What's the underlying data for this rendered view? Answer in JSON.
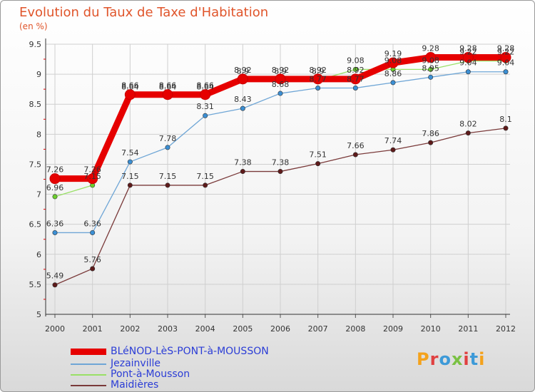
{
  "title": "Evolution du Taux de Taxe d'Habitation",
  "subtitle": "(en %)",
  "logo": "Proxiti",
  "colors": {
    "title": "#e0552b",
    "legend_text": "#2b3dd6",
    "grid": "#cfcfcf",
    "axis_red": "#e00000"
  },
  "chart_data": {
    "type": "line",
    "title": "Evolution du Taux de Taxe d'Habitation",
    "ylabel": "(en %)",
    "xlabel": "",
    "x": [
      2000,
      2001,
      2002,
      2003,
      2004,
      2005,
      2006,
      2007,
      2008,
      2009,
      2010,
      2011,
      2012
    ],
    "ylim": [
      5,
      9.5
    ],
    "yticks": [
      5,
      5.5,
      6,
      6.5,
      7,
      7.5,
      8,
      8.5,
      9,
      9.5
    ],
    "grid": true,
    "legend_position": "bottom-left",
    "series": [
      {
        "name": "BLéNOD-LèS-PONT-à-MOUSSON",
        "color": "#e60000",
        "marker": "#e60000",
        "width": 9,
        "values": [
          7.26,
          7.26,
          8.66,
          8.66,
          8.66,
          8.92,
          8.92,
          8.92,
          8.92,
          9.19,
          9.28,
          9.28,
          9.28
        ],
        "labels": [
          "7.26",
          "7.26",
          "8.66",
          "8.66",
          "8.66",
          "8.92",
          "8.92",
          "8.92",
          "8.92",
          "9.19",
          "9.28",
          "9.28",
          "9.28"
        ],
        "label_dy": -9
      },
      {
        "name": "Jezainville",
        "color": "#6fa6d6",
        "marker": "#3b8fd4",
        "width": 1.3,
        "values": [
          6.36,
          6.36,
          7.54,
          7.78,
          8.31,
          8.43,
          8.68,
          8.77,
          8.77,
          8.86,
          8.95,
          9.04,
          9.04
        ],
        "labels": [
          "6.36",
          "6.36",
          "7.54",
          "7.78",
          "8.31",
          "8.43",
          "8.68",
          "8.77",
          "8.77",
          "8.86",
          "8.95",
          "9.04",
          "9.04"
        ],
        "label_dy": -9
      },
      {
        "name": "Pont-à-Mousson",
        "color": "#99e066",
        "marker": "#6ccf2e",
        "width": 1.3,
        "values": [
          6.96,
          7.15,
          8.64,
          8.64,
          8.64,
          8.9,
          8.9,
          8.9,
          9.08,
          9.08,
          9.08,
          9.22,
          9.22
        ],
        "labels": [
          "6.96",
          "7.15",
          "8.64",
          "8.64",
          "8.64",
          "8.9",
          "8.9",
          "8.9",
          "9.08",
          "9.08",
          "9.08",
          "9.22",
          "9.22"
        ],
        "label_dy": -9
      },
      {
        "name": "Maidières",
        "color": "#7a3a3a",
        "marker": "#5e1a1a",
        "width": 1.3,
        "values": [
          5.49,
          5.76,
          7.15,
          7.15,
          7.15,
          7.38,
          7.38,
          7.51,
          7.66,
          7.74,
          7.86,
          8.02,
          8.1
        ],
        "labels": [
          "5.49",
          "5.76",
          "7.15",
          "7.15",
          "7.15",
          "7.38",
          "7.38",
          "7.51",
          "7.66",
          "7.74",
          "7.86",
          "8.02",
          "8.1"
        ],
        "label_dy": -9
      }
    ]
  }
}
